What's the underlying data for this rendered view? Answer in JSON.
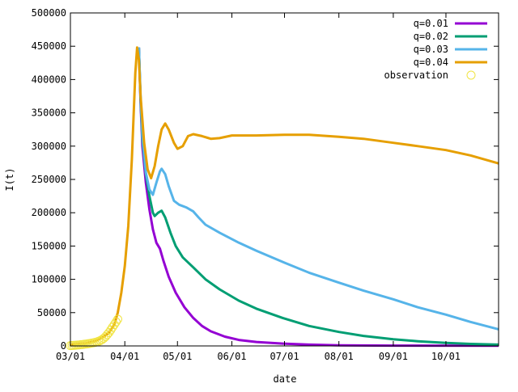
{
  "chart_data": {
    "type": "line",
    "xlabel": "date",
    "ylabel": "I(t)",
    "x_start": "2020-03-01",
    "x_end": "2020-10-31",
    "xlim": [
      "2020-03-01",
      "2020-10-31"
    ],
    "ylim": [
      0,
      500000
    ],
    "grid": false,
    "legend_position": "top-right",
    "x_ticks": [
      {
        "date": "2020-03-01",
        "label": "03/01"
      },
      {
        "date": "2020-04-01",
        "label": "04/01"
      },
      {
        "date": "2020-05-01",
        "label": "05/01"
      },
      {
        "date": "2020-06-01",
        "label": "06/01"
      },
      {
        "date": "2020-07-01",
        "label": "07/01"
      },
      {
        "date": "2020-08-01",
        "label": "08/01"
      },
      {
        "date": "2020-09-01",
        "label": "09/01"
      },
      {
        "date": "2020-10-01",
        "label": "10/01"
      }
    ],
    "y_ticks": [
      0,
      50000,
      100000,
      150000,
      200000,
      250000,
      300000,
      350000,
      400000,
      450000,
      500000
    ],
    "series": [
      {
        "name": "q=0.01",
        "color": "#9400d3",
        "points": [
          [
            "2020-04-09",
            448000
          ],
          [
            "2020-04-10",
            365000
          ],
          [
            "2020-04-11",
            300000
          ],
          [
            "2020-04-13",
            245000
          ],
          [
            "2020-04-15",
            205000
          ],
          [
            "2020-04-17",
            175000
          ],
          [
            "2020-04-19",
            155000
          ],
          [
            "2020-04-21",
            146000
          ],
          [
            "2020-04-23",
            128000
          ],
          [
            "2020-04-26",
            104000
          ],
          [
            "2020-04-30",
            80000
          ],
          [
            "2020-05-05",
            58000
          ],
          [
            "2020-05-10",
            42000
          ],
          [
            "2020-05-15",
            30000
          ],
          [
            "2020-05-20",
            22000
          ],
          [
            "2020-05-28",
            14000
          ],
          [
            "2020-06-05",
            9000
          ],
          [
            "2020-06-15",
            6000
          ],
          [
            "2020-06-30",
            3500
          ],
          [
            "2020-07-15",
            2000
          ],
          [
            "2020-08-01",
            1000
          ],
          [
            "2020-09-01",
            500
          ],
          [
            "2020-10-31",
            200
          ]
        ]
      },
      {
        "name": "q=0.02",
        "color": "#009e73",
        "points": [
          [
            "2020-04-09",
            448000
          ],
          [
            "2020-04-10",
            370000
          ],
          [
            "2020-04-11",
            310000
          ],
          [
            "2020-04-13",
            258000
          ],
          [
            "2020-04-15",
            225000
          ],
          [
            "2020-04-17",
            200000
          ],
          [
            "2020-04-18",
            195000
          ],
          [
            "2020-04-20",
            200000
          ],
          [
            "2020-04-22",
            203000
          ],
          [
            "2020-04-24",
            193000
          ],
          [
            "2020-04-27",
            170000
          ],
          [
            "2020-04-30",
            150000
          ],
          [
            "2020-05-04",
            133000
          ],
          [
            "2020-05-10",
            118000
          ],
          [
            "2020-05-17",
            100000
          ],
          [
            "2020-05-25",
            85000
          ],
          [
            "2020-06-05",
            68000
          ],
          [
            "2020-06-15",
            56000
          ],
          [
            "2020-06-30",
            42000
          ],
          [
            "2020-07-15",
            30000
          ],
          [
            "2020-08-01",
            21000
          ],
          [
            "2020-08-15",
            15000
          ],
          [
            "2020-09-01",
            10000
          ],
          [
            "2020-09-15",
            7000
          ],
          [
            "2020-10-01",
            4500
          ],
          [
            "2020-10-15",
            3000
          ],
          [
            "2020-10-31",
            2000
          ]
        ]
      },
      {
        "name": "q=0.03",
        "color": "#56b4e9",
        "points": [
          [
            "2020-04-09",
            448000
          ],
          [
            "2020-04-10",
            375000
          ],
          [
            "2020-04-11",
            315000
          ],
          [
            "2020-04-13",
            260000
          ],
          [
            "2020-04-15",
            235000
          ],
          [
            "2020-04-17",
            227000
          ],
          [
            "2020-04-19",
            245000
          ],
          [
            "2020-04-21",
            262000
          ],
          [
            "2020-04-22",
            266000
          ],
          [
            "2020-04-24",
            258000
          ],
          [
            "2020-04-26",
            240000
          ],
          [
            "2020-04-29",
            218000
          ],
          [
            "2020-05-02",
            212000
          ],
          [
            "2020-05-06",
            208000
          ],
          [
            "2020-05-10",
            202000
          ],
          [
            "2020-05-13",
            193000
          ],
          [
            "2020-05-17",
            182000
          ],
          [
            "2020-05-25",
            170000
          ],
          [
            "2020-06-05",
            155000
          ],
          [
            "2020-06-15",
            143000
          ],
          [
            "2020-07-01",
            125000
          ],
          [
            "2020-07-15",
            110000
          ],
          [
            "2020-08-01",
            95000
          ],
          [
            "2020-08-15",
            83000
          ],
          [
            "2020-09-01",
            70000
          ],
          [
            "2020-09-15",
            58000
          ],
          [
            "2020-10-01",
            47000
          ],
          [
            "2020-10-15",
            36000
          ],
          [
            "2020-10-31",
            25000
          ]
        ]
      },
      {
        "name": "q=0.04",
        "color": "#e69f00",
        "points": [
          [
            "2020-03-01",
            2000
          ],
          [
            "2020-03-10",
            4000
          ],
          [
            "2020-03-15",
            7000
          ],
          [
            "2020-03-20",
            14000
          ],
          [
            "2020-03-23",
            20000
          ],
          [
            "2020-03-26",
            32000
          ],
          [
            "2020-03-28",
            50000
          ],
          [
            "2020-03-30",
            80000
          ],
          [
            "2020-04-01",
            120000
          ],
          [
            "2020-04-03",
            180000
          ],
          [
            "2020-04-05",
            280000
          ],
          [
            "2020-04-07",
            410000
          ],
          [
            "2020-04-08",
            448000
          ],
          [
            "2020-04-09",
            430000
          ],
          [
            "2020-04-10",
            375000
          ],
          [
            "2020-04-12",
            305000
          ],
          [
            "2020-04-14",
            265000
          ],
          [
            "2020-04-16",
            252000
          ],
          [
            "2020-04-18",
            270000
          ],
          [
            "2020-04-20",
            300000
          ],
          [
            "2020-04-22",
            325000
          ],
          [
            "2020-04-24",
            334000
          ],
          [
            "2020-04-26",
            325000
          ],
          [
            "2020-04-29",
            305000
          ],
          [
            "2020-05-01",
            296000
          ],
          [
            "2020-05-04",
            300000
          ],
          [
            "2020-05-07",
            315000
          ],
          [
            "2020-05-10",
            318000
          ],
          [
            "2020-05-15",
            315000
          ],
          [
            "2020-05-20",
            311000
          ],
          [
            "2020-05-25",
            312000
          ],
          [
            "2020-06-01",
            316000
          ],
          [
            "2020-06-15",
            316000
          ],
          [
            "2020-07-01",
            317000
          ],
          [
            "2020-07-15",
            317000
          ],
          [
            "2020-08-01",
            314000
          ],
          [
            "2020-08-15",
            311000
          ],
          [
            "2020-09-01",
            305000
          ],
          [
            "2020-09-15",
            300000
          ],
          [
            "2020-10-01",
            294000
          ],
          [
            "2020-10-15",
            286000
          ],
          [
            "2020-10-31",
            274000
          ]
        ]
      }
    ],
    "observation": {
      "name": "observation",
      "color": "#f0e442",
      "marker": "open-circle",
      "points": [
        [
          "2020-03-01",
          500
        ],
        [
          "2020-03-02",
          700
        ],
        [
          "2020-03-03",
          900
        ],
        [
          "2020-03-04",
          1100
        ],
        [
          "2020-03-05",
          1300
        ],
        [
          "2020-03-06",
          1600
        ],
        [
          "2020-03-07",
          1900
        ],
        [
          "2020-03-08",
          2200
        ],
        [
          "2020-03-09",
          2500
        ],
        [
          "2020-03-10",
          2900
        ],
        [
          "2020-03-11",
          3300
        ],
        [
          "2020-03-12",
          3700
        ],
        [
          "2020-03-13",
          4200
        ],
        [
          "2020-03-14",
          4700
        ],
        [
          "2020-03-15",
          5300
        ],
        [
          "2020-03-16",
          6000
        ],
        [
          "2020-03-17",
          6900
        ],
        [
          "2020-03-18",
          8000
        ],
        [
          "2020-03-19",
          9500
        ],
        [
          "2020-03-20",
          11500
        ],
        [
          "2020-03-21",
          14000
        ],
        [
          "2020-03-22",
          17000
        ],
        [
          "2020-03-23",
          20000
        ],
        [
          "2020-03-24",
          24000
        ],
        [
          "2020-03-25",
          28000
        ],
        [
          "2020-03-26",
          32000
        ],
        [
          "2020-03-27",
          36000
        ],
        [
          "2020-03-28",
          40000
        ]
      ]
    }
  }
}
